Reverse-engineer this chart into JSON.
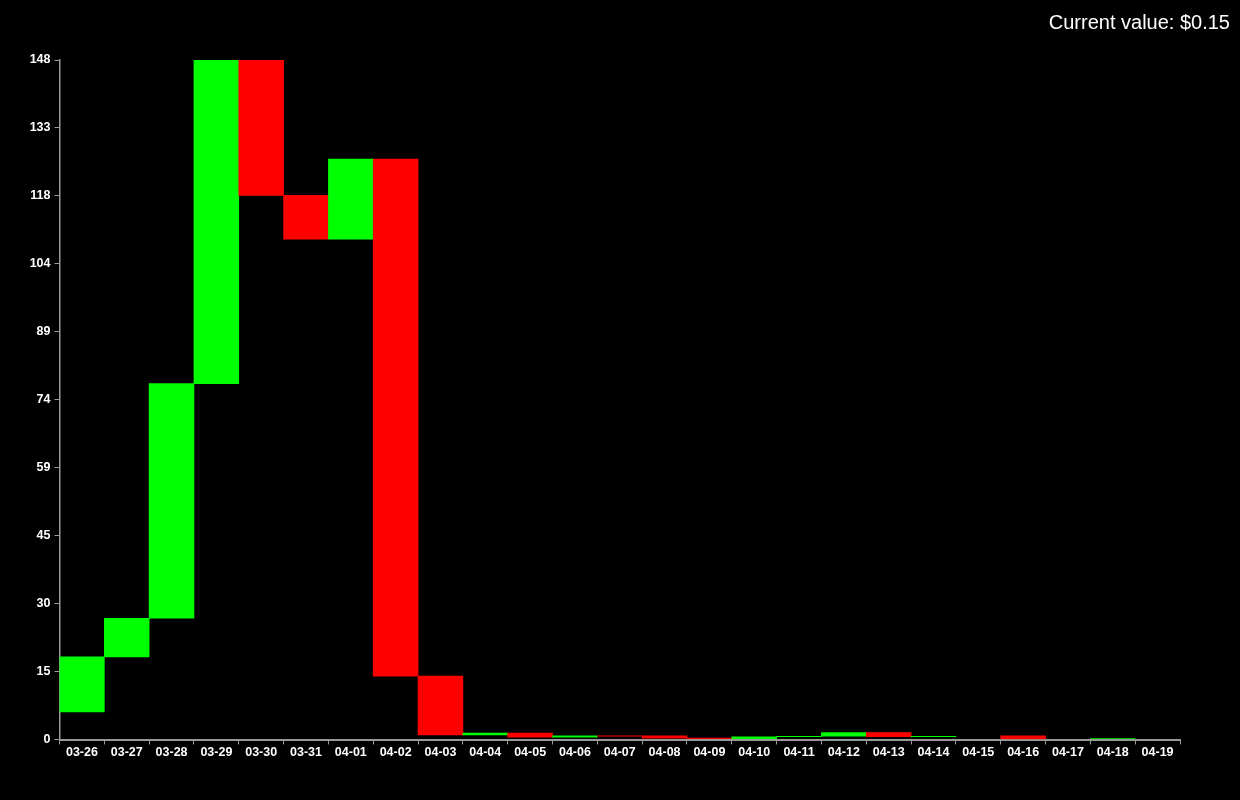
{
  "chart_data": {
    "type": "bar",
    "categories": [
      "03-26",
      "03-27",
      "03-28",
      "03-29",
      "03-30",
      "03-31",
      "04-01",
      "04-02",
      "04-03",
      "04-04",
      "04-05",
      "04-06",
      "04-07",
      "04-08",
      "04-09",
      "04-10",
      "04-11",
      "04-12",
      "04-13",
      "04-14",
      "04-15",
      "04-16",
      "04-17",
      "04-18",
      "04-19"
    ],
    "base": [
      6,
      18,
      26.4,
      77.5,
      148,
      118.5,
      109,
      126.4,
      13.8,
      1.0,
      1.4,
      0.5,
      0.8,
      0.8,
      0.3,
      0.2,
      0.6,
      0.7,
      1.5,
      0.6,
      null,
      0.8,
      null,
      0.1,
      null
    ],
    "values": [
      12,
      8.4,
      51.1,
      70.5,
      -29.5,
      -9.5,
      17.4,
      -112.6,
      -12.8,
      0.4,
      -0.9,
      0.3,
      -0.1,
      -0.5,
      -0.1,
      0.4,
      0.1,
      0.8,
      -0.9,
      0.1,
      null,
      -0.7,
      null,
      0.1,
      null
    ],
    "colors": [
      "#00ff00",
      "#00ff00",
      "#00ff00",
      "#00ff00",
      "#ff0000",
      "#ff0000",
      "#00ff00",
      "#ff0000",
      "#ff0000",
      "#00ff00",
      "#ff0000",
      "#00ff00",
      "#ff0000",
      "#ff0000",
      "#ff0000",
      "#00ff00",
      "#00ff00",
      "#00ff00",
      "#ff0000",
      "#00ff00",
      null,
      "#ff0000",
      null,
      "#00ff00",
      null
    ],
    "ylim": [
      0,
      148
    ],
    "yticks": [
      0,
      {
        "value": 14.8,
        "label": "15"
      },
      {
        "value": 29.6,
        "label": "30"
      },
      {
        "value": 44.5,
        "label": "45"
      },
      {
        "value": 59.2,
        "label": "59"
      },
      74,
      {
        "value": 88.8,
        "label": "89"
      },
      {
        "value": 103.6,
        "label": "104"
      },
      {
        "value": 118.4,
        "label": "118"
      },
      {
        "value": 133.2,
        "label": "133"
      },
      148
    ],
    "annotations": [
      "Current value: $0.15"
    ]
  }
}
